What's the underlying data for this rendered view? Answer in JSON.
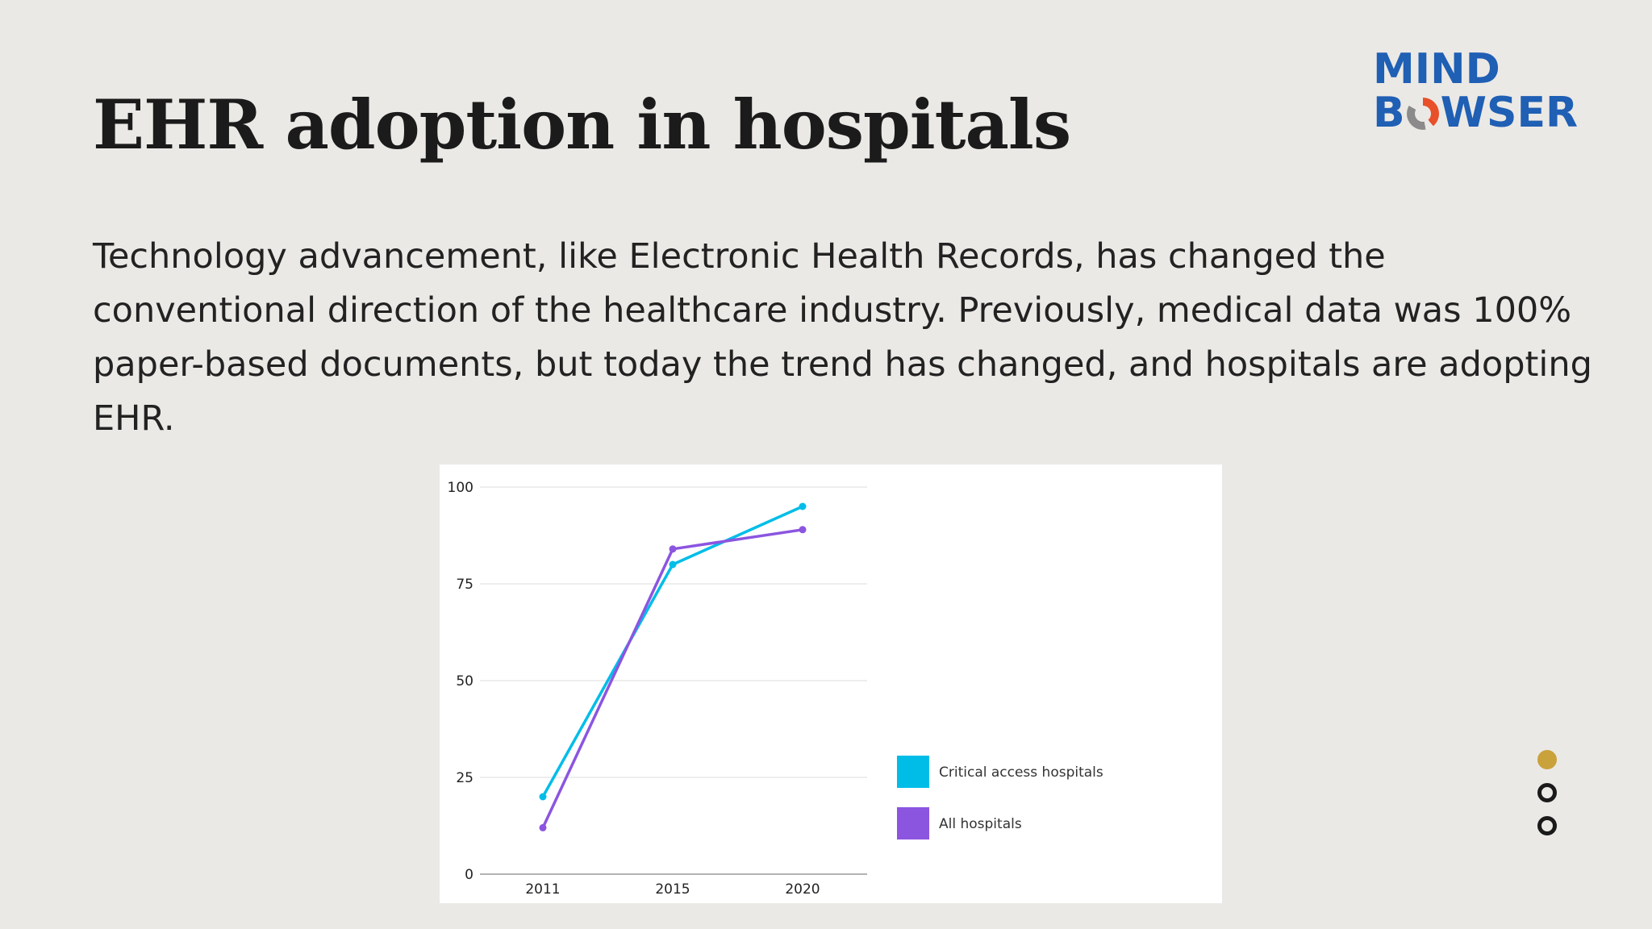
{
  "slide": {
    "title": "EHR adoption in hospitals",
    "body": "Technology advancement, like Electronic Health Records, has changed the conventional direction of the healthcare industry. Previously, medical data was 100% paper-based documents, but today the trend has changed, and hospitals are adopting EHR."
  },
  "logo": {
    "line1": "MIND",
    "line2_pre": "B",
    "line2_post": "WSER",
    "color": "#1f5fb4"
  },
  "nav_dots": [
    {
      "state": "active"
    },
    {
      "state": "inactive"
    },
    {
      "state": "inactive"
    }
  ],
  "chart_data": {
    "type": "line",
    "x": [
      "2011",
      "2015",
      "2020"
    ],
    "ylim": [
      0,
      100
    ],
    "yticks": [
      "0",
      "25",
      "50",
      "75",
      "100"
    ],
    "grid": true,
    "legend_position": "right",
    "series": [
      {
        "name": "Critical access hospitals",
        "color": "#00bde8",
        "values": [
          20,
          80,
          95
        ]
      },
      {
        "name": "All hospitals",
        "color": "#8b55e0",
        "values": [
          12,
          84,
          89
        ]
      }
    ]
  }
}
